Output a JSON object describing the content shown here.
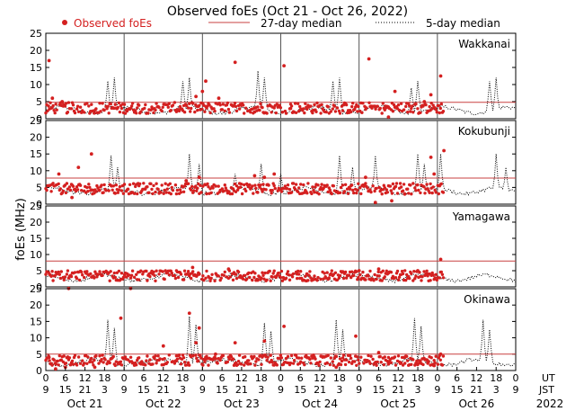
{
  "chart_data": {
    "type": "scatter",
    "title": "Observed foEs (Oct 21 - Oct 26, 2022)",
    "ylabel": "foEs (MHz)",
    "ylim": [
      0,
      25
    ],
    "yticks": [
      0,
      5,
      10,
      15,
      20,
      25
    ],
    "legend": {
      "observed": "Observed foEs",
      "median27": "27-day median",
      "median5": "5-day median"
    },
    "days": [
      "Oct 21",
      "Oct 22",
      "Oct 23",
      "Oct 24",
      "Oct 25",
      "Oct 26"
    ],
    "year": "2022",
    "ut_label": "UT",
    "jst_label": "JST",
    "ut_ticks": [
      "0",
      "6",
      "12",
      "18",
      "0",
      "6",
      "12",
      "18",
      "0",
      "6",
      "12",
      "18",
      "0",
      "6",
      "12",
      "18",
      "0",
      "6",
      "12",
      "18",
      "0",
      "6",
      "12",
      "18",
      "0"
    ],
    "jst_ticks": [
      "9",
      "15",
      "21",
      "3",
      "9",
      "15",
      "21",
      "3",
      "9",
      "15",
      "21",
      "3",
      "9",
      "15",
      "21",
      "3",
      "9",
      "15",
      "21",
      "3",
      "9",
      "15",
      "21",
      "3",
      "9"
    ],
    "hours_total": 144,
    "observed_end_hour": 122,
    "stations": [
      {
        "name": "Wakkanai",
        "median27": 4.8,
        "baseline": 2.5,
        "spikes": [
          [
            19,
            11
          ],
          [
            21,
            12
          ],
          [
            42,
            11
          ],
          [
            44,
            12
          ],
          [
            65,
            14
          ],
          [
            67,
            12
          ],
          [
            88,
            11
          ],
          [
            90,
            12
          ],
          [
            112,
            9
          ],
          [
            114,
            11
          ],
          [
            136,
            11
          ],
          [
            138,
            12
          ]
        ],
        "outliers": [
          [
            1,
            17
          ],
          [
            2,
            6
          ],
          [
            5,
            5
          ],
          [
            46,
            6.5
          ],
          [
            48,
            8
          ],
          [
            49,
            11
          ],
          [
            53,
            6
          ],
          [
            58,
            16.5
          ],
          [
            64,
            2
          ],
          [
            73,
            15.5
          ],
          [
            75,
            3
          ],
          [
            99,
            17.5
          ],
          [
            105,
            0.5
          ],
          [
            107,
            8
          ],
          [
            116,
            5
          ],
          [
            118,
            7
          ],
          [
            121,
            12.5
          ]
        ]
      },
      {
        "name": "Kokubunji",
        "median27": 7.8,
        "baseline": 4.0,
        "spikes": [
          [
            20,
            14.5
          ],
          [
            22,
            11
          ],
          [
            44,
            15
          ],
          [
            47,
            12
          ],
          [
            58,
            9
          ],
          [
            66,
            12
          ],
          [
            72,
            9
          ],
          [
            90,
            14.5
          ],
          [
            94,
            11
          ],
          [
            101,
            14.5
          ],
          [
            114,
            15
          ],
          [
            116,
            12
          ],
          [
            121,
            15
          ],
          [
            138,
            15
          ],
          [
            141,
            11
          ]
        ],
        "outliers": [
          [
            4,
            9
          ],
          [
            8,
            2
          ],
          [
            10,
            11
          ],
          [
            14,
            15
          ],
          [
            43,
            7
          ],
          [
            47,
            8
          ],
          [
            64,
            8.5
          ],
          [
            67,
            8
          ],
          [
            70,
            9
          ],
          [
            98,
            8
          ],
          [
            101,
            0.5
          ],
          [
            106,
            1
          ],
          [
            110,
            3
          ],
          [
            118,
            14
          ],
          [
            122,
            16
          ],
          [
            119,
            9
          ]
        ]
      },
      {
        "name": "Yamagawa",
        "median27": 8.0,
        "baseline": 2.8,
        "spikes": [],
        "outliers": [
          [
            7,
            -0.5
          ],
          [
            26,
            -0.5
          ],
          [
            45,
            6
          ],
          [
            47,
            4
          ],
          [
            56,
            5.5
          ],
          [
            77,
            4
          ],
          [
            80,
            4
          ],
          [
            96,
            5
          ],
          [
            102,
            5.5
          ],
          [
            114,
            5
          ],
          [
            117,
            4
          ],
          [
            121,
            8.5
          ]
        ]
      },
      {
        "name": "Okinawa",
        "median27": 5.0,
        "baseline": 2.5,
        "spikes": [
          [
            19,
            15.5
          ],
          [
            21,
            13
          ],
          [
            44,
            16.5
          ],
          [
            46,
            14
          ],
          [
            67,
            14.5
          ],
          [
            69,
            12
          ],
          [
            89,
            15.5
          ],
          [
            91,
            12.5
          ],
          [
            113,
            16
          ],
          [
            115,
            13.5
          ],
          [
            134,
            15.5
          ],
          [
            136,
            12.5
          ]
        ],
        "outliers": [
          [
            1,
            4
          ],
          [
            3,
            0.5
          ],
          [
            6,
            1
          ],
          [
            15,
            1
          ],
          [
            23,
            16
          ],
          [
            36,
            7.5
          ],
          [
            40,
            3
          ],
          [
            44,
            17.5
          ],
          [
            46,
            8.5
          ],
          [
            47,
            13
          ],
          [
            49,
            4
          ],
          [
            52,
            5
          ],
          [
            58,
            8.5
          ],
          [
            62,
            2
          ],
          [
            67,
            9
          ],
          [
            73,
            13.5
          ],
          [
            89,
            1
          ],
          [
            95,
            10.5
          ],
          [
            102,
            5.5
          ],
          [
            105,
            2
          ],
          [
            110,
            4
          ],
          [
            117,
            3
          ],
          [
            119,
            1.5
          ],
          [
            121,
            5
          ]
        ]
      }
    ]
  },
  "colors": {
    "observed": "#d42020",
    "median27": "#c94040",
    "median5": "#000000",
    "axis": "#000000",
    "daygrid": "#555555"
  }
}
